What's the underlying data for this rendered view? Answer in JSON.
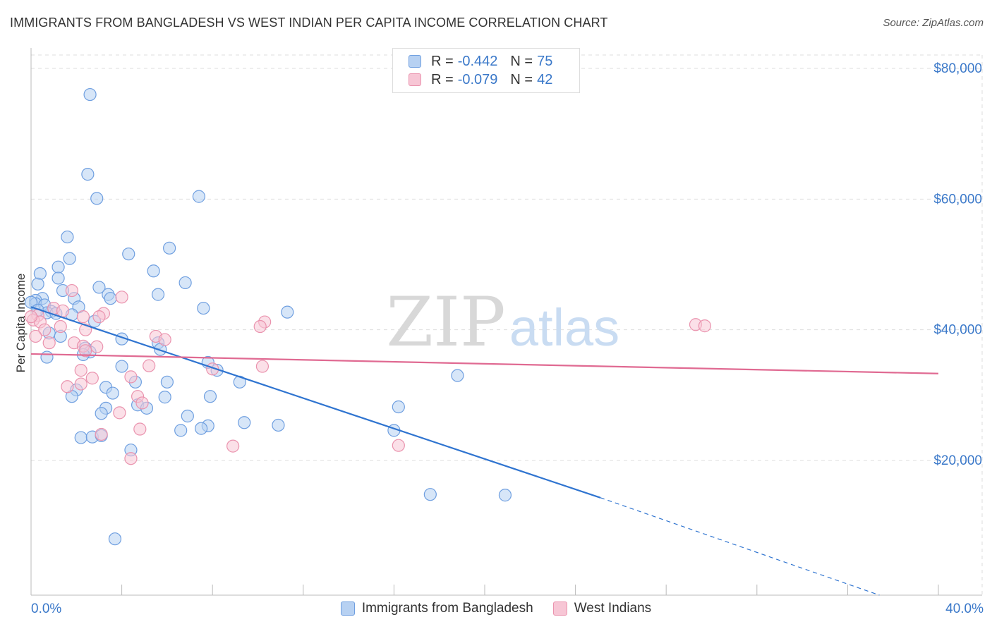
{
  "header": {
    "title": "IMMIGRANTS FROM BANGLADESH VS WEST INDIAN PER CAPITA INCOME CORRELATION CHART",
    "source": "Source: ZipAtlas.com"
  },
  "watermark": {
    "part1": "ZIP",
    "part2": "atlas"
  },
  "legend_top": {
    "rows": [
      {
        "r_label": "R =",
        "r_value": "-0.442",
        "n_label": "N =",
        "n_value": "75"
      },
      {
        "r_label": "R =",
        "r_value": "-0.079",
        "n_label": "N =",
        "n_value": "42"
      }
    ]
  },
  "legend_bottom": {
    "items": [
      {
        "label": "Immigrants from Bangladesh"
      },
      {
        "label": "West Indians"
      }
    ]
  },
  "colors": {
    "blue_fill": "#b7d1f2",
    "blue_stroke": "#6f9fe0",
    "blue_line": "#2f74d0",
    "pink_fill": "#f7c6d5",
    "pink_stroke": "#ea93ae",
    "pink_line": "#e06a92",
    "tick_label": "#3a78c9",
    "grid": "#dddddd"
  },
  "chart_data": {
    "type": "scatter",
    "title": "IMMIGRANTS FROM BANGLADESH VS WEST INDIAN PER CAPITA INCOME CORRELATION CHART",
    "xlabel": "",
    "ylabel": "Per Capita Income",
    "xlim": [
      0,
      40
    ],
    "ylim": [
      0,
      82000
    ],
    "x_tick_labels": [
      "0.0%",
      "40.0%"
    ],
    "y_ticks": [
      20000,
      40000,
      60000,
      80000
    ],
    "y_tick_labels": [
      "$20,000",
      "$40,000",
      "$60,000",
      "$80,000"
    ],
    "grid": true,
    "legend_placement": "bottom",
    "series": [
      {
        "name": "Immigrants from Bangladesh",
        "r": -0.442,
        "n": 75,
        "trend": {
          "x": [
            0,
            25.1
          ],
          "y": [
            43500,
            14300
          ],
          "dashed_to": [
            37.4,
            0
          ]
        },
        "points": [
          [
            2.6,
            76000
          ],
          [
            2.5,
            63800
          ],
          [
            2.9,
            60100
          ],
          [
            7.4,
            60400
          ],
          [
            1.6,
            54200
          ],
          [
            6.1,
            52500
          ],
          [
            4.3,
            51600
          ],
          [
            1.7,
            50900
          ],
          [
            1.2,
            49600
          ],
          [
            0.4,
            48600
          ],
          [
            5.4,
            49000
          ],
          [
            1.2,
            47900
          ],
          [
            0.3,
            47000
          ],
          [
            6.8,
            47200
          ],
          [
            3.0,
            46500
          ],
          [
            1.4,
            46000
          ],
          [
            3.4,
            45400
          ],
          [
            5.6,
            45400
          ],
          [
            0.5,
            44800
          ],
          [
            1.9,
            44800
          ],
          [
            3.5,
            44800
          ],
          [
            0.2,
            44500
          ],
          [
            0.2,
            44000
          ],
          [
            0.6,
            43800
          ],
          [
            2.1,
            43500
          ],
          [
            7.6,
            43300
          ],
          [
            11.3,
            42700
          ],
          [
            0.9,
            42800
          ],
          [
            0.7,
            42600
          ],
          [
            1.1,
            42500
          ],
          [
            1.8,
            42300
          ],
          [
            2.8,
            41300
          ],
          [
            0.8,
            39500
          ],
          [
            1.3,
            39000
          ],
          [
            4.0,
            38600
          ],
          [
            5.6,
            38000
          ],
          [
            2.4,
            37200
          ],
          [
            5.7,
            37000
          ],
          [
            2.6,
            36600
          ],
          [
            2.3,
            36200
          ],
          [
            0.7,
            35800
          ],
          [
            7.8,
            35000
          ],
          [
            8.2,
            33800
          ],
          [
            4.0,
            34400
          ],
          [
            18.8,
            33000
          ],
          [
            9.2,
            32000
          ],
          [
            4.6,
            32000
          ],
          [
            6.0,
            32000
          ],
          [
            3.3,
            31200
          ],
          [
            2.0,
            30800
          ],
          [
            3.6,
            30300
          ],
          [
            1.8,
            29800
          ],
          [
            5.9,
            29700
          ],
          [
            7.9,
            29800
          ],
          [
            4.7,
            28500
          ],
          [
            3.3,
            28000
          ],
          [
            5.1,
            28000
          ],
          [
            16.2,
            28200
          ],
          [
            3.1,
            27200
          ],
          [
            6.9,
            26800
          ],
          [
            9.4,
            25800
          ],
          [
            10.9,
            25400
          ],
          [
            7.8,
            25300
          ],
          [
            7.5,
            24900
          ],
          [
            6.6,
            24600
          ],
          [
            16.0,
            24600
          ],
          [
            2.2,
            23500
          ],
          [
            2.7,
            23600
          ],
          [
            3.1,
            23800
          ],
          [
            4.4,
            21600
          ],
          [
            17.6,
            14800
          ],
          [
            20.9,
            14700
          ],
          [
            3.7,
            8000
          ],
          [
            0.0,
            44200
          ],
          [
            0.3,
            43000
          ]
        ]
      },
      {
        "name": "West Indians",
        "r": -0.079,
        "n": 42,
        "trend": {
          "x": [
            0,
            40
          ],
          "y": [
            36300,
            33300
          ]
        },
        "points": [
          [
            4.0,
            45000
          ],
          [
            1.8,
            46000
          ],
          [
            1.0,
            43300
          ],
          [
            1.4,
            42900
          ],
          [
            3.2,
            42500
          ],
          [
            0.3,
            42200
          ],
          [
            2.3,
            42000
          ],
          [
            3.0,
            42000
          ],
          [
            0.1,
            41500
          ],
          [
            0.4,
            41200
          ],
          [
            10.3,
            41200
          ],
          [
            10.1,
            40500
          ],
          [
            29.3,
            40800
          ],
          [
            29.7,
            40600
          ],
          [
            0.6,
            40000
          ],
          [
            1.3,
            40500
          ],
          [
            2.4,
            40000
          ],
          [
            0.2,
            39000
          ],
          [
            5.5,
            39000
          ],
          [
            5.9,
            38500
          ],
          [
            0.8,
            38000
          ],
          [
            1.9,
            38000
          ],
          [
            2.3,
            37500
          ],
          [
            2.9,
            37400
          ],
          [
            2.4,
            36800
          ],
          [
            5.2,
            34500
          ],
          [
            8.0,
            34000
          ],
          [
            10.2,
            34400
          ],
          [
            2.2,
            33800
          ],
          [
            4.4,
            32800
          ],
          [
            2.7,
            32600
          ],
          [
            2.2,
            31700
          ],
          [
            1.6,
            31300
          ],
          [
            4.7,
            29800
          ],
          [
            4.9,
            28800
          ],
          [
            3.9,
            27300
          ],
          [
            4.8,
            24800
          ],
          [
            3.1,
            24000
          ],
          [
            8.9,
            22200
          ],
          [
            16.2,
            22300
          ],
          [
            4.4,
            20300
          ],
          [
            0.0,
            42000
          ]
        ]
      }
    ]
  }
}
